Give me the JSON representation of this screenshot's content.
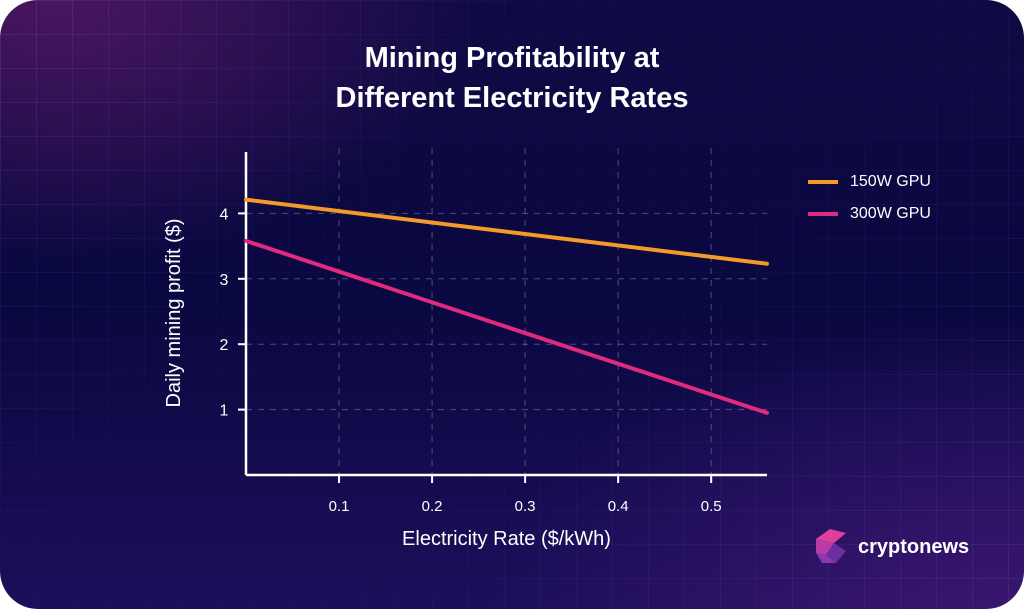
{
  "chart_data": {
    "type": "line",
    "title": "Mining Profitability at Different Electricity Rates",
    "title_lines": [
      "Mining Profitability at",
      "Different Electricity Rates"
    ],
    "xlabel": "Electricity Rate ($/kWh)",
    "ylabel": "Daily mining profit ($)",
    "xlim": [
      0,
      0.56
    ],
    "ylim": [
      0,
      5
    ],
    "xticks": [
      "0.1",
      "0.2",
      "0.3",
      "0.4",
      "0.5"
    ],
    "yticks": [
      "1",
      "2",
      "3",
      "4"
    ],
    "grid": true,
    "legend_position": "right",
    "series": [
      {
        "name": "150W GPU",
        "color": "#f39a2b",
        "x": [
          0,
          0.56
        ],
        "y": [
          4.21,
          3.23
        ]
      },
      {
        "name": "300W GPU",
        "color": "#e0297f",
        "x": [
          0,
          0.56
        ],
        "y": [
          3.58,
          0.95
        ]
      }
    ]
  },
  "brand": {
    "name": "cryptonews"
  }
}
